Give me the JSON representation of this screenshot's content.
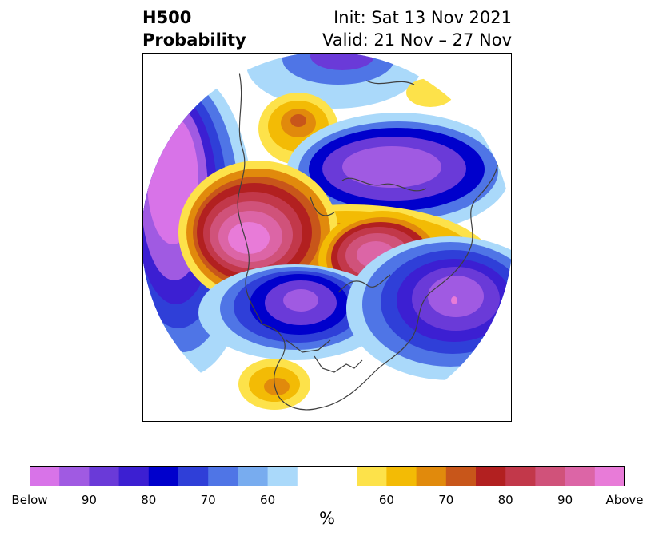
{
  "header": {
    "title_line1": "H500",
    "title_line2": "Probability",
    "init_text": "Init: Sat 13 Nov 2021",
    "valid_text": "Valid: 21 Nov – 27 Nov"
  },
  "colorbar": {
    "unit": "%",
    "colors": [
      "#d873e8",
      "#a05ae2",
      "#6a3ad8",
      "#3c1fd2",
      "#0000cc",
      "#2f3fd8",
      "#4f75e6",
      "#78acef",
      "#aad9fa",
      "#ffffff",
      "#ffffff",
      "#fde24a",
      "#f3bb05",
      "#e18a0c",
      "#c8561a",
      "#b22020",
      "#c2384a",
      "#d0527a",
      "#dc65a6",
      "#e87bd8"
    ],
    "tick_labels": [
      "Below",
      "90",
      "80",
      "70",
      "60",
      "60",
      "70",
      "80",
      "90",
      "Above"
    ]
  }
}
